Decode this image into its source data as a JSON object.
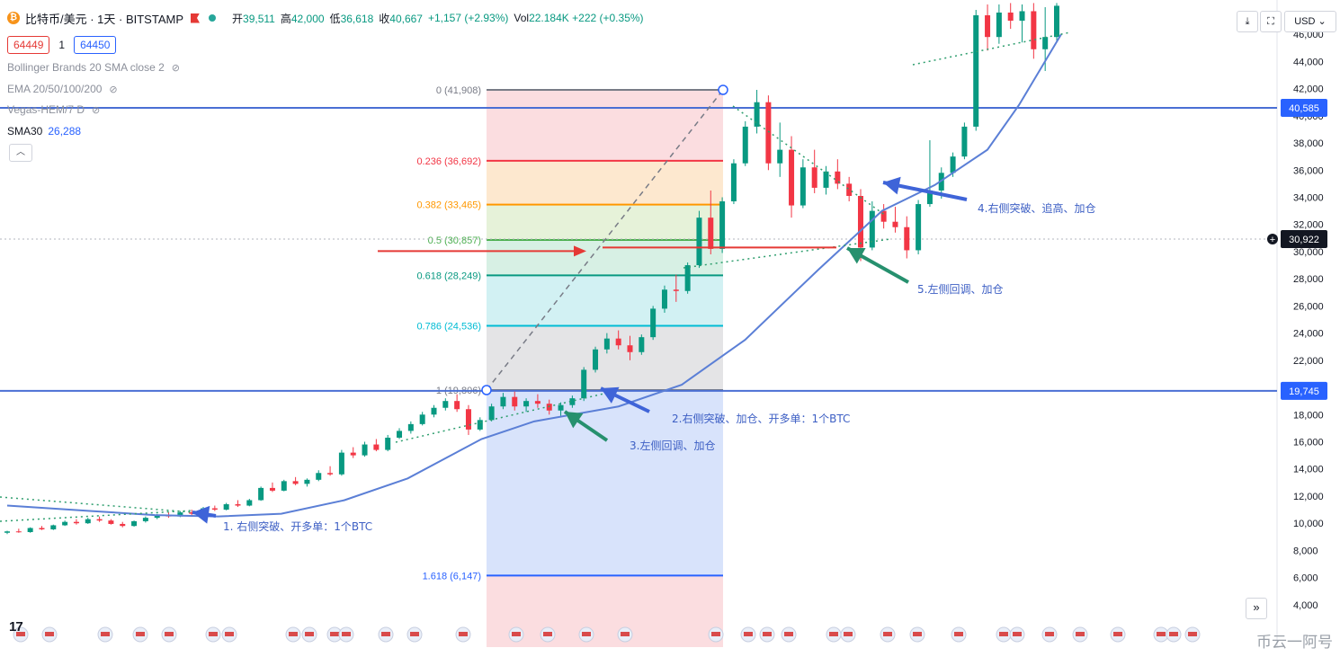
{
  "header": {
    "symbol": "比特币/美元 · 1天 · BITSTAMP",
    "open_label": "开",
    "open": "39,511",
    "high_label": "高",
    "high": "42,000",
    "low_label": "低",
    "low": "36,618",
    "close_label": "收",
    "close": "40,667",
    "change": "+1,157 (+2.93%)",
    "volume_label": "Vol",
    "volume": "22.184K",
    "volume_change": "+222 (+0.35%)"
  },
  "bid": "64449",
  "spread": "1",
  "ask": "64450",
  "indicators": [
    {
      "name": "Bollinger Brands 20 SMA close 2"
    },
    {
      "name": "EMA 20/50/100/200"
    },
    {
      "name": "Vegas-HEM/7 D"
    }
  ],
  "sma": {
    "label": "SMA30",
    "value": "26,288"
  },
  "toolbar": {
    "currency": "USD"
  },
  "watermark": "币云一阿号",
  "colors": {
    "up": "#089981",
    "down": "#f23645",
    "sma": "#5b7fd6",
    "blue_line": "#4a6fd4"
  },
  "chart_data": {
    "type": "candlestick",
    "y_range": [
      2000,
      48000
    ],
    "y_ticks": [
      "4,000",
      "6,000",
      "8,000",
      "10,000",
      "12,000",
      "14,000",
      "16,000",
      "18,000",
      "20,000",
      "22,000",
      "24,000",
      "26,000",
      "28,000",
      "30,000",
      "32,000",
      "34,000",
      "36,000",
      "38,000",
      "40,000",
      "42,000",
      "44,000",
      "46,000"
    ],
    "y_tick_values": [
      4000,
      6000,
      8000,
      10000,
      12000,
      14000,
      16000,
      18000,
      20000,
      22000,
      24000,
      26000,
      28000,
      30000,
      32000,
      34000,
      36000,
      38000,
      40000,
      42000,
      44000,
      46000
    ],
    "price_labels": [
      {
        "value": 40585,
        "text": "40,585",
        "color": "#2962ff"
      },
      {
        "value": 30922,
        "text": "30,922",
        "color": "#131722"
      },
      {
        "value": 19745,
        "text": "19,745",
        "color": "#2962ff"
      }
    ],
    "horizontal_lines": [
      40585,
      19745
    ],
    "fibonacci": [
      {
        "ratio": 0,
        "price": 41908,
        "label": "0 (41,908)",
        "color": "#787b86",
        "fill": "#fbdde0"
      },
      {
        "ratio": 0.236,
        "price": 36692,
        "label": "0.236 (36,692)",
        "color": "#f23645",
        "fill": "#fde8cf"
      },
      {
        "ratio": 0.382,
        "price": 33465,
        "label": "0.382 (33,465)",
        "color": "#ff9800",
        "fill": "#e6f2d9"
      },
      {
        "ratio": 0.5,
        "price": 30857,
        "label": "0.5 (30,857)",
        "color": "#4caf50",
        "fill": "#d7f0e4"
      },
      {
        "ratio": 0.618,
        "price": 28249,
        "label": "0.618 (28,249)",
        "color": "#089981",
        "fill": "#d2f1f3"
      },
      {
        "ratio": 0.786,
        "price": 24536,
        "label": "0.786 (24,536)",
        "color": "#00bcd4",
        "fill": "#e4e4e6"
      },
      {
        "ratio": 1,
        "price": 19806,
        "label": "1 (19,806)",
        "color": "#787b86",
        "fill": "#d8e3fb"
      },
      {
        "ratio": 1.618,
        "price": 6147,
        "label": "1.618 (6,147)",
        "color": "#2962ff",
        "fill": "#fbdde0"
      }
    ],
    "annotations": [
      {
        "text": "1. 右侧突破、开多单：1个BTC",
        "color": "#3d5fc4",
        "price": 10300
      },
      {
        "text": "2.右侧突破、加仓、开多单：1个BTC",
        "color": "#3d5fc4",
        "price": 18900
      },
      {
        "text": "3.左侧回调、加仓",
        "color": "#3d5fc4",
        "price": 18400
      },
      {
        "text": "4.右侧突破、追高、加仓",
        "color": "#3d5fc4",
        "price": 34900
      },
      {
        "text": "5.左侧回调、加仓",
        "color": "#3d5fc4",
        "price": 30200
      }
    ],
    "candles": [
      [
        9300,
        9450,
        9200,
        9400
      ],
      [
        9400,
        9600,
        9300,
        9350
      ],
      [
        9350,
        9700,
        9300,
        9650
      ],
      [
        9650,
        9800,
        9500,
        9550
      ],
      [
        9550,
        9900,
        9500,
        9850
      ],
      [
        9850,
        10200,
        9800,
        10100
      ],
      [
        10100,
        10300,
        9900,
        10000
      ],
      [
        10000,
        10400,
        9950,
        10300
      ],
      [
        10300,
        10500,
        10100,
        10200
      ],
      [
        10200,
        10300,
        9900,
        9950
      ],
      [
        9950,
        10100,
        9700,
        9800
      ],
      [
        9800,
        10200,
        9750,
        10150
      ],
      [
        10150,
        10500,
        10050,
        10400
      ],
      [
        10400,
        10700,
        10300,
        10600
      ],
      [
        10600,
        10800,
        10400,
        10500
      ],
      [
        10500,
        10900,
        10450,
        10800
      ],
      [
        10800,
        11000,
        10600,
        10700
      ],
      [
        10700,
        11200,
        10650,
        11100
      ],
      [
        11100,
        11300,
        10900,
        11000
      ],
      [
        11000,
        11500,
        10950,
        11400
      ],
      [
        11400,
        11700,
        11200,
        11300
      ],
      [
        11300,
        11800,
        11250,
        11700
      ],
      [
        11700,
        12700,
        11650,
        12600
      ],
      [
        12600,
        13000,
        12300,
        12400
      ],
      [
        12400,
        13200,
        12350,
        13100
      ],
      [
        13100,
        13400,
        12800,
        12900
      ],
      [
        12900,
        13300,
        12700,
        13200
      ],
      [
        13200,
        13900,
        13100,
        13700
      ],
      [
        13700,
        14200,
        13500,
        13600
      ],
      [
        13600,
        15400,
        13500,
        15200
      ],
      [
        15200,
        15600,
        14800,
        15000
      ],
      [
        15000,
        16000,
        14900,
        15800
      ],
      [
        15800,
        16200,
        15300,
        15400
      ],
      [
        15400,
        16500,
        15300,
        16300
      ],
      [
        16300,
        17000,
        16200,
        16800
      ],
      [
        16800,
        17500,
        16600,
        17300
      ],
      [
        17300,
        18200,
        17200,
        18000
      ],
      [
        18000,
        18700,
        17800,
        18500
      ],
      [
        18500,
        19200,
        18300,
        19000
      ],
      [
        19000,
        19500,
        18200,
        18400
      ],
      [
        18400,
        18700,
        16500,
        16900
      ],
      [
        16900,
        17800,
        16800,
        17600
      ],
      [
        17600,
        18800,
        17500,
        18600
      ],
      [
        18600,
        19600,
        18400,
        19300
      ],
      [
        19300,
        19700,
        18300,
        18600
      ],
      [
        18600,
        19200,
        18200,
        19000
      ],
      [
        19000,
        19500,
        18500,
        18800
      ],
      [
        18800,
        19100,
        18000,
        18300
      ],
      [
        18300,
        18900,
        17900,
        18700
      ],
      [
        18700,
        19400,
        18500,
        19200
      ],
      [
        19200,
        21500,
        19000,
        21300
      ],
      [
        21300,
        23000,
        21100,
        22800
      ],
      [
        22800,
        24000,
        22500,
        23600
      ],
      [
        23600,
        24200,
        22800,
        23100
      ],
      [
        23100,
        23800,
        22000,
        22600
      ],
      [
        22600,
        23900,
        22400,
        23700
      ],
      [
        23700,
        26000,
        23500,
        25800
      ],
      [
        25800,
        27500,
        25500,
        27200
      ],
      [
        27200,
        28300,
        26300,
        27100
      ],
      [
        27100,
        29200,
        26900,
        29000
      ],
      [
        29000,
        33000,
        28800,
        32500
      ],
      [
        32500,
        34500,
        29800,
        30200
      ],
      [
        30200,
        34000,
        29900,
        33700
      ],
      [
        33700,
        36800,
        33500,
        36500
      ],
      [
        36500,
        39600,
        36300,
        39200
      ],
      [
        39200,
        41908,
        38700,
        41000
      ],
      [
        41000,
        41500,
        36000,
        36500
      ],
      [
        36500,
        39500,
        35500,
        37500
      ],
      [
        37500,
        38500,
        32500,
        33400
      ],
      [
        33400,
        36800,
        33200,
        36200
      ],
      [
        36200,
        37500,
        34300,
        34700
      ],
      [
        34700,
        36300,
        34200,
        35900
      ],
      [
        35900,
        36800,
        34600,
        35000
      ],
      [
        35000,
        35500,
        33700,
        34100
      ],
      [
        34100,
        34600,
        29300,
        30300
      ],
      [
        30300,
        33700,
        30100,
        33000
      ],
      [
        33000,
        33500,
        31700,
        32200
      ],
      [
        32200,
        33300,
        31400,
        31800
      ],
      [
        31800,
        32600,
        29500,
        30100
      ],
      [
        30100,
        33800,
        29800,
        33500
      ],
      [
        33500,
        38200,
        33300,
        34500
      ],
      [
        34500,
        36200,
        33900,
        35800
      ],
      [
        35800,
        37300,
        35500,
        37000
      ],
      [
        37000,
        39500,
        36800,
        39200
      ],
      [
        39200,
        47800,
        38900,
        47400
      ],
      [
        47400,
        48200,
        44800,
        45800
      ],
      [
        45800,
        48200,
        45300,
        47600
      ],
      [
        47600,
        48300,
        46400,
        47000
      ],
      [
        47000,
        48200,
        45400,
        47700
      ],
      [
        47700,
        48300,
        44200,
        44900
      ],
      [
        44900,
        48000,
        43300,
        45800
      ],
      [
        45800,
        48300,
        45500,
        48100
      ]
    ],
    "sma30": [
      [
        0,
        11300
      ],
      [
        0.08,
        10900
      ],
      [
        0.14,
        10600
      ],
      [
        0.2,
        10500
      ],
      [
        0.26,
        10700
      ],
      [
        0.32,
        11700
      ],
      [
        0.38,
        13300
      ],
      [
        0.45,
        16200
      ],
      [
        0.5,
        17500
      ],
      [
        0.58,
        18600
      ],
      [
        0.64,
        20200
      ],
      [
        0.7,
        23500
      ],
      [
        0.77,
        28700
      ],
      [
        0.83,
        33000
      ],
      [
        0.88,
        34900
      ],
      [
        0.93,
        37500
      ],
      [
        0.96,
        40800
      ],
      [
        1.0,
        46000
      ]
    ]
  }
}
